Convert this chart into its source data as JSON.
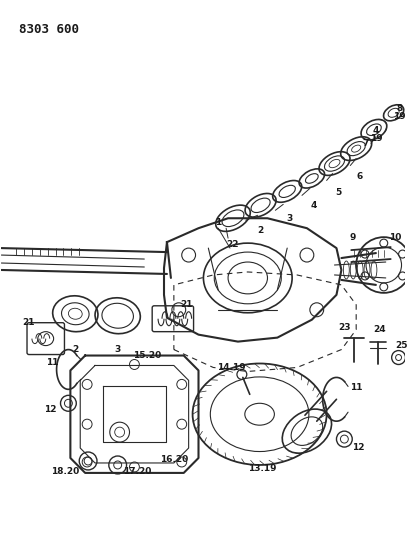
{
  "title": "8303 600",
  "background_color": "#ffffff",
  "line_color": "#2a2a2a",
  "text_color": "#1a1a1a",
  "fig_width": 4.1,
  "fig_height": 5.33,
  "dpi": 100
}
